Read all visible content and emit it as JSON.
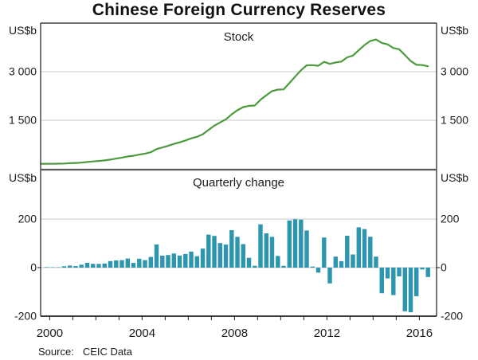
{
  "title": "Chinese Foreign Currency Reserves",
  "units_label": "US$b",
  "source": {
    "label": "Source:",
    "value": "CEIC Data"
  },
  "colors": {
    "line_green": "#4B9B3C",
    "bar_teal": "#2B96AE",
    "gridline": "#c9c9c9",
    "divider": "#58585b",
    "frame": "#1c1c1c",
    "text": "#1c1c1c"
  },
  "x_axis": {
    "labels": [
      "2000",
      "2004",
      "2008",
      "2012",
      "2016"
    ],
    "tick_every_year": true,
    "range": [
      "1999Q4",
      "2016Q3"
    ]
  },
  "chart_data": [
    {
      "type": "line",
      "panel": "top",
      "title": "Stock",
      "ylabel": "US$b",
      "ylim": [
        0,
        4520
      ],
      "yticks": [
        1500,
        3000
      ],
      "ytick_labels": [
        "1 500",
        "3 000"
      ],
      "frequency": "quarterly",
      "x_start": "1999Q4",
      "x_end": "2016Q3",
      "values": [
        154.7,
        156.8,
        158.6,
        160.1,
        165.6,
        174.2,
        180.8,
        192.6,
        212.2,
        227.6,
        242.8,
        259.6,
        286.4,
        316.0,
        346.5,
        383.9,
        403.3,
        439.8,
        470.6,
        514.5,
        609.9,
        659.1,
        711.0,
        769.0,
        818.9,
        875.1,
        941.1,
        987.9,
        1066.3,
        1202.0,
        1332.6,
        1433.6,
        1528.2,
        1682.2,
        1808.8,
        1905.6,
        1946.0,
        1953.7,
        2131.6,
        2272.6,
        2399.2,
        2447.1,
        2454.3,
        2648.3,
        2847.3,
        3044.7,
        3197.5,
        3201.7,
        3181.1,
        3305.0,
        3240.0,
        3285.1,
        3311.6,
        3442.7,
        3496.7,
        3662.7,
        3821.3,
        3948.1,
        3993.2,
        3887.7,
        3843.0,
        3730.0,
        3693.8,
        3514.1,
        3330.4,
        3212.6,
        3205.2,
        3166.4
      ]
    },
    {
      "type": "bar",
      "panel": "bottom",
      "title": "Quarterly change",
      "ylabel": "US$b",
      "ylim": [
        -200,
        403
      ],
      "yticks": [
        -200,
        0,
        200
      ],
      "ytick_labels": [
        "-200",
        "0",
        "200"
      ],
      "frequency": "quarterly",
      "x_start": "2000Q1",
      "x_end": "2016Q3",
      "values": [
        2.1,
        1.8,
        1.5,
        5.5,
        8.6,
        6.6,
        11.8,
        19.6,
        15.4,
        15.2,
        16.8,
        26.8,
        29.6,
        30.5,
        37.4,
        19.4,
        36.5,
        30.8,
        43.9,
        95.4,
        49.2,
        51.9,
        58.0,
        49.9,
        56.2,
        66.0,
        46.8,
        78.4,
        135.7,
        130.6,
        101.0,
        94.6,
        154.0,
        126.6,
        96.8,
        40.4,
        7.7,
        177.9,
        141.0,
        126.6,
        47.9,
        7.2,
        194.0,
        199.0,
        197.4,
        152.8,
        4.2,
        -20.6,
        123.9,
        -65.0,
        45.1,
        26.5,
        131.1,
        54.0,
        166.0,
        158.6,
        126.8,
        45.1,
        -105.5,
        -44.7,
        -113.0,
        -36.2,
        -179.7,
        -183.7,
        -117.8,
        -7.4,
        -38.8
      ]
    }
  ]
}
